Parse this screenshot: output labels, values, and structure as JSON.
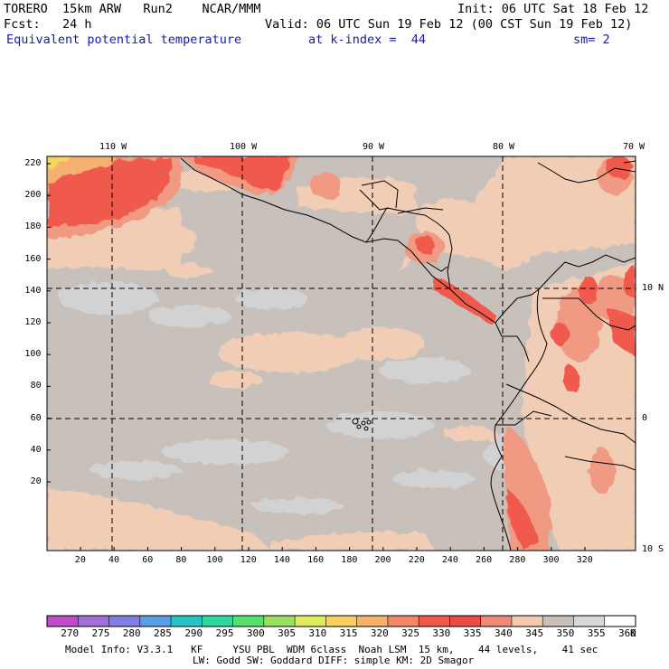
{
  "header": {
    "model": "TORERO  15km ARW   Run2    NCAR/MMM",
    "init": "Init: 06 UTC Sat 18 Feb 12",
    "fcst": "Fcst:   24 h",
    "valid": "Valid: 06 UTC Sun 19 Feb 12 (00 CST Sun 19 Feb 12)",
    "field": "Equivalent potential temperature",
    "level": "at k-index =  44",
    "smooth": "sm= 2"
  },
  "map": {
    "lon_labels": [
      "110 W",
      "100 W",
      "90 W",
      "80 W",
      "70 W"
    ],
    "lat_labels": [
      "10 N",
      "0",
      "10 S"
    ],
    "y_ticks": [
      "220",
      "200",
      "180",
      "160",
      "140",
      "120",
      "100",
      "80",
      "60",
      "40",
      "20"
    ],
    "x_ticks": [
      "20",
      "40",
      "60",
      "80",
      "100",
      "120",
      "140",
      "160",
      "180",
      "200",
      "220",
      "240",
      "260",
      "280",
      "300",
      "320"
    ],
    "background_color": "#c8c1bb"
  },
  "colorbar": {
    "labels": [
      "270",
      "275",
      "280",
      "285",
      "290",
      "295",
      "300",
      "305",
      "310",
      "315",
      "320",
      "325",
      "330",
      "335",
      "340",
      "345",
      "350",
      "355",
      "360"
    ],
    "unit": "K",
    "colors": [
      "#c04dc8",
      "#a070d8",
      "#7f7fe6",
      "#5a9ee8",
      "#27c4c4",
      "#2cd9a0",
      "#55e070",
      "#9ae060",
      "#dcee60",
      "#f6d060",
      "#f5b06a",
      "#f3876a",
      "#f0584c",
      "#ee4a4a",
      "#f08a78",
      "#f2c9b0",
      "#c8c1bb",
      "#d8d8d8",
      "#ffffff"
    ]
  },
  "footer": {
    "line1": "Model Info: V3.3.1   KF     YSU PBL  WDM 6class  Noah LSM  15 km,    44 levels,    41 sec",
    "line2": "LW: Godd SW: Goddard DIFF: simple KM: 2D Smagor"
  }
}
